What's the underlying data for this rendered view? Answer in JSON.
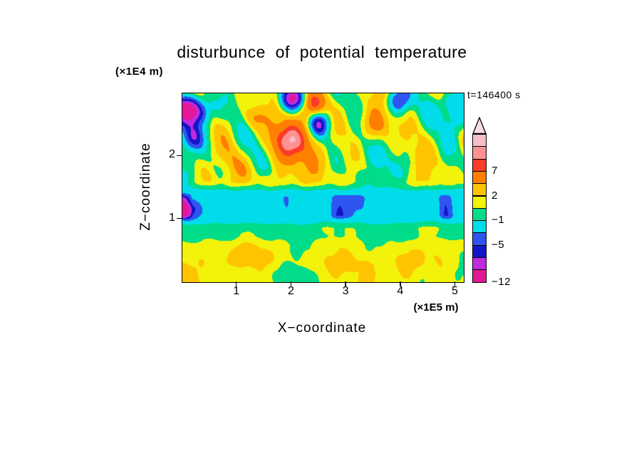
{
  "title": "disturbunce of potential temperature",
  "time_label": "t=146400 s",
  "axes": {
    "x_label": "X−coordinate",
    "x_unit": "(×1E5 m)",
    "x_ticks": [
      "1",
      "2",
      "3",
      "4",
      "5"
    ],
    "y_label": "Z−coordinate",
    "y_unit": "(×1E4 m)",
    "y_ticks": [
      "1",
      "2"
    ]
  },
  "chart_data": {
    "type": "heatmap",
    "subtype": "filled-contour",
    "title": "disturbunce of potential temperature",
    "xlabel": "X−coordinate (×1E5 m)",
    "ylabel": "Z−coordinate (×1E4 m)",
    "time_annotation": "t=146400 s",
    "x_range": [
      0,
      5.15
    ],
    "y_range": [
      0,
      3.0
    ],
    "x_tick_values": [
      1,
      2,
      3,
      4,
      5
    ],
    "y_tick_values": [
      1,
      2
    ],
    "level_boundaries": [
      -12,
      -9,
      -7,
      -5,
      -3,
      -1,
      0.5,
      2,
      4,
      7,
      9,
      11,
      13
    ],
    "palette_low_to_high": [
      "#e41896",
      "#c02be0",
      "#1515c8",
      "#2e55f0",
      "#00dcea",
      "#00dc87",
      "#f2f20a",
      "#ffc400",
      "#ff7f00",
      "#fb3a28",
      "#ff9191",
      "#f5bcca"
    ],
    "colorbar_labeled_levels": [
      7,
      2,
      -1,
      -5,
      -12
    ],
    "field_description": "Turbulent warm disturbances (yellow/orange/red with isolated deep-blue negative cells) above z≈1.5e4 m; broad cyan negative band near z≈1.0–1.4e4 m containing dark-blue streaks of ≈ −5; green band near z≈0.8e4 m; mostly yellow (≈1–2) layer with green and amber patches below."
  },
  "colorbar": {
    "arrow_color": "#f8dce6",
    "labels": [
      {
        "text": "7",
        "boundary": 3
      },
      {
        "text": "2",
        "boundary": 5
      },
      {
        "text": "−1",
        "boundary": 7
      },
      {
        "text": "−5",
        "boundary": 9
      },
      {
        "text": "−12",
        "boundary": 12
      }
    ]
  }
}
